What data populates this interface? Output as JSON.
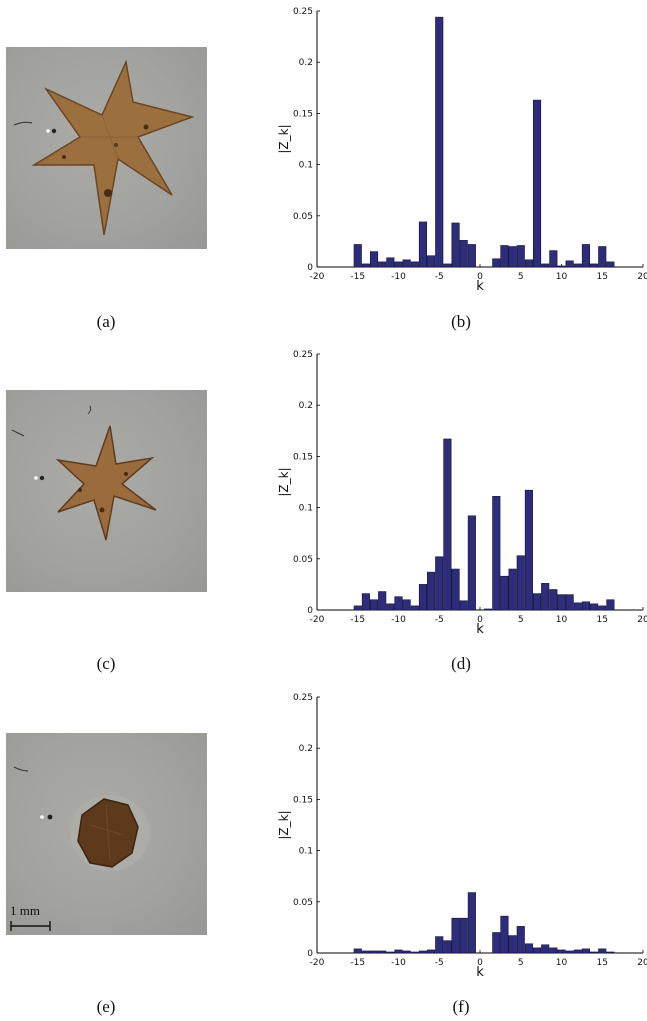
{
  "panels": [
    {
      "photo_label": "(a)",
      "plot_label": "(b)"
    },
    {
      "photo_label": "(c)",
      "plot_label": "(d)"
    },
    {
      "photo_label": "(e)",
      "plot_label": "(f)"
    }
  ],
  "scale_bar": {
    "label": "1 mm"
  },
  "colors": {
    "bar_fill": "#2e2d7c",
    "bar_stroke": "#111133",
    "photo_bg": "#a4a4a1",
    "object": "#9a6b3c",
    "object_dark": "#5a3a20"
  },
  "chart_data": [
    {
      "type": "bar",
      "xlabel": "k",
      "ylabel": "|Z_k|",
      "xlim": [
        -20,
        20
      ],
      "ylim": [
        0,
        0.25
      ],
      "xticks": [
        -20,
        -15,
        -10,
        -5,
        0,
        5,
        10,
        15,
        20
      ],
      "yticks": [
        0,
        0.05,
        0.1,
        0.15,
        0.2,
        0.25
      ],
      "k": [
        -15,
        -14,
        -13,
        -12,
        -11,
        -10,
        -9,
        -8,
        -7,
        -6,
        -5,
        -4,
        -3,
        -2,
        -1,
        0,
        1,
        2,
        3,
        4,
        5,
        6,
        7,
        8,
        9,
        10,
        11,
        12,
        13,
        14,
        15,
        16
      ],
      "values": [
        0.022,
        0.003,
        0.015,
        0.005,
        0.009,
        0.005,
        0.007,
        0.005,
        0.044,
        0.011,
        0.244,
        0.003,
        0.043,
        0.026,
        0.022,
        0.0,
        0.0,
        0.008,
        0.021,
        0.02,
        0.021,
        0.007,
        0.163,
        0.003,
        0.016,
        0.001,
        0.006,
        0.003,
        0.022,
        0.003,
        0.02,
        0.005
      ]
    },
    {
      "type": "bar",
      "xlabel": "k",
      "ylabel": "|Z_k|",
      "xlim": [
        -20,
        20
      ],
      "ylim": [
        0,
        0.25
      ],
      "xticks": [
        -20,
        -15,
        -10,
        -5,
        0,
        5,
        10,
        15,
        20
      ],
      "yticks": [
        0,
        0.05,
        0.1,
        0.15,
        0.2,
        0.25
      ],
      "k": [
        -15,
        -14,
        -13,
        -12,
        -11,
        -10,
        -9,
        -8,
        -7,
        -6,
        -5,
        -4,
        -3,
        -2,
        -1,
        0,
        1,
        2,
        3,
        4,
        5,
        6,
        7,
        8,
        9,
        10,
        11,
        12,
        13,
        14,
        15,
        16
      ],
      "values": [
        0.004,
        0.016,
        0.01,
        0.018,
        0.006,
        0.013,
        0.01,
        0.004,
        0.025,
        0.037,
        0.052,
        0.167,
        0.04,
        0.009,
        0.092,
        0.0,
        0.001,
        0.111,
        0.033,
        0.04,
        0.053,
        0.117,
        0.016,
        0.026,
        0.02,
        0.015,
        0.015,
        0.007,
        0.008,
        0.006,
        0.004,
        0.01
      ]
    },
    {
      "type": "bar",
      "xlabel": "k",
      "ylabel": "|Z_k|",
      "xlim": [
        -20,
        20
      ],
      "ylim": [
        0,
        0.25
      ],
      "xticks": [
        -20,
        -15,
        -10,
        -5,
        0,
        5,
        10,
        15,
        20
      ],
      "yticks": [
        0,
        0.05,
        0.1,
        0.15,
        0.2,
        0.25
      ],
      "k": [
        -15,
        -14,
        -13,
        -12,
        -11,
        -10,
        -9,
        -8,
        -7,
        -6,
        -5,
        -4,
        -3,
        -2,
        -1,
        0,
        1,
        2,
        3,
        4,
        5,
        6,
        7,
        8,
        9,
        10,
        11,
        12,
        13,
        14,
        15,
        16
      ],
      "values": [
        0.004,
        0.002,
        0.002,
        0.002,
        0.001,
        0.003,
        0.002,
        0.001,
        0.002,
        0.003,
        0.016,
        0.012,
        0.034,
        0.034,
        0.059,
        0.0,
        0.0,
        0.02,
        0.036,
        0.017,
        0.026,
        0.009,
        0.005,
        0.008,
        0.005,
        0.003,
        0.002,
        0.003,
        0.004,
        0.001,
        0.004,
        0.001
      ]
    }
  ]
}
